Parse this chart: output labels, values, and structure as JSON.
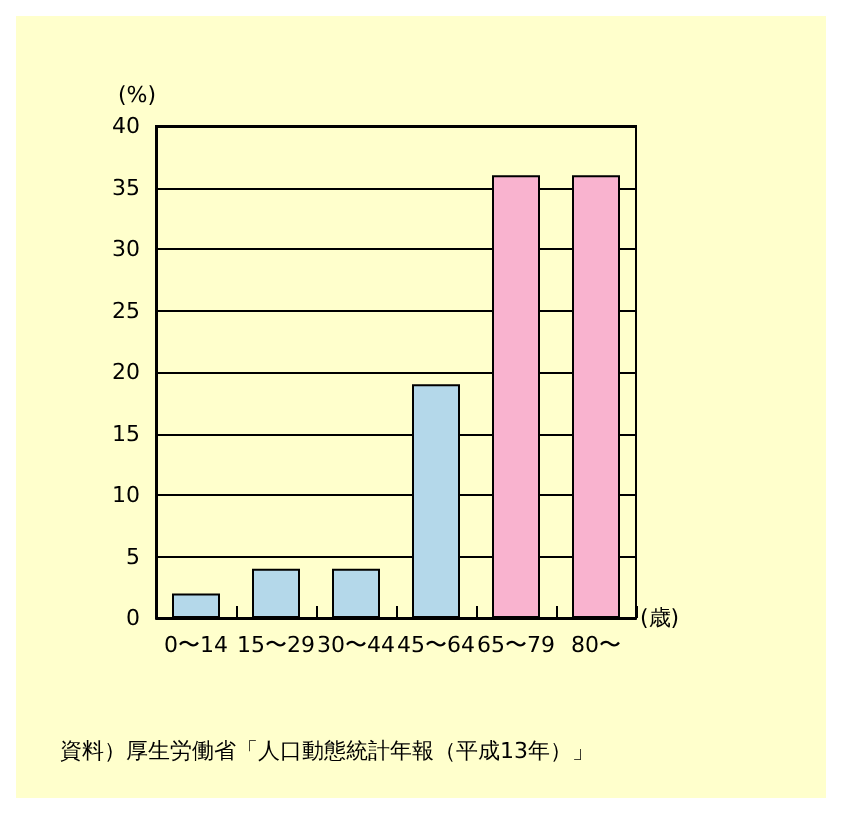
{
  "chart_data": {
    "type": "bar",
    "categories": [
      "0〜14",
      "15〜29",
      "30〜44",
      "45〜64",
      "65〜79",
      "80〜"
    ],
    "values": [
      2,
      4,
      4,
      19,
      36,
      36
    ],
    "colors": [
      "#b4d8ea",
      "#b4d8ea",
      "#b4d8ea",
      "#b4d8ea",
      "#f9b3cf",
      "#f9b3cf"
    ],
    "ylabel": "(%)",
    "xlabel": "(歳)",
    "ylim": [
      0,
      40
    ],
    "yticks": [
      0,
      5,
      10,
      15,
      20,
      25,
      30,
      35,
      40
    ],
    "grid": "y",
    "annotations": [
      "資料）厚生労働省「人口動態統計年報（平成13年）」"
    ]
  }
}
